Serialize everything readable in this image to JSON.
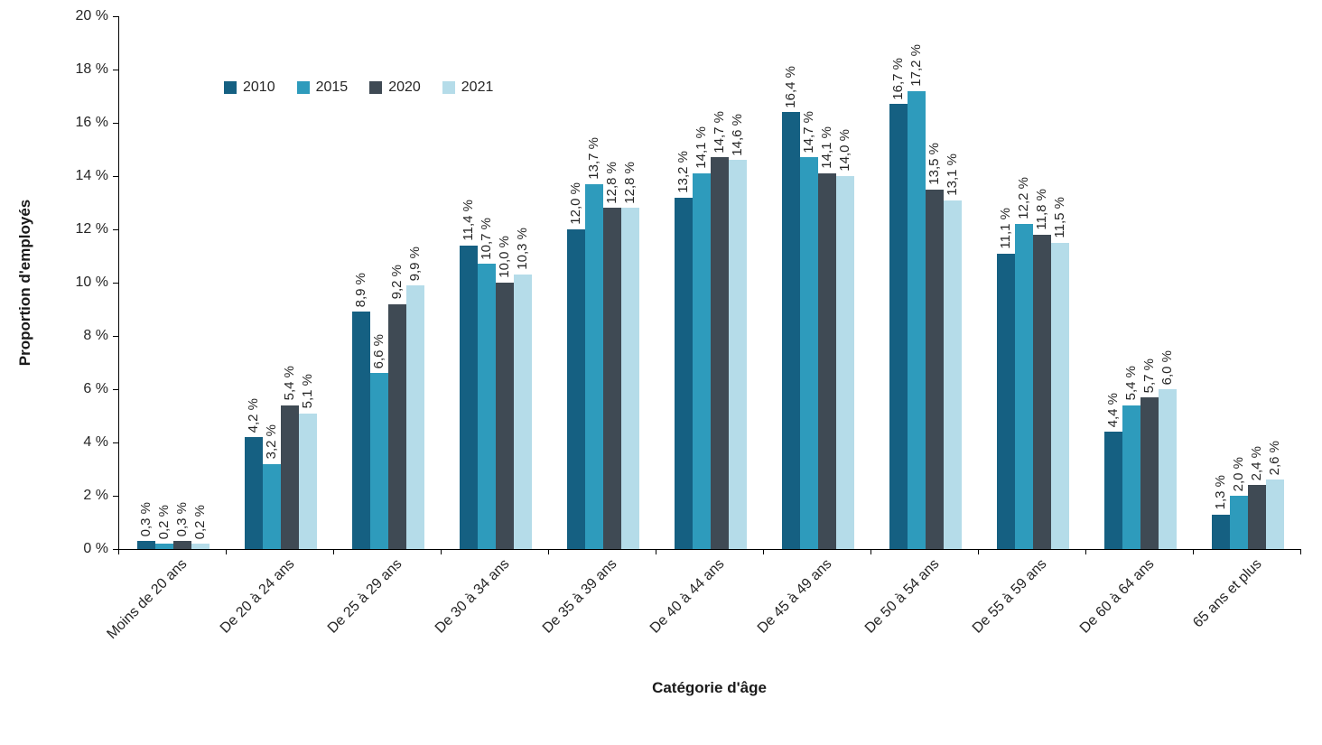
{
  "chart_data": {
    "type": "bar",
    "title": "",
    "xlabel": "Catégorie d'âge",
    "ylabel": "Proportion d'employés",
    "ylim": [
      0,
      20
    ],
    "ytick_step": 2,
    "yticks": [
      "0 %",
      "2 %",
      "4 %",
      "6 %",
      "8 %",
      "10 %",
      "12 %",
      "14 %",
      "16 %",
      "18 %",
      "20 %"
    ],
    "grid": false,
    "legend_position": "top-left-inside",
    "categories": [
      "Moins de 20 ans",
      "De 20 à 24 ans",
      "De 25 à 29 ans",
      "De 30 à 34 ans",
      "De 35 à 39 ans",
      "De 40 à 44 ans",
      "De 45 à 49 ans",
      "De 50 à 54 ans",
      "De 55 à 59 ans",
      "De 60 à 64 ans",
      "65 ans et plus"
    ],
    "series": [
      {
        "name": "2010",
        "color": "#156082",
        "values": [
          0.3,
          4.2,
          8.9,
          11.4,
          12.0,
          13.2,
          16.4,
          16.7,
          11.1,
          4.4,
          1.3
        ],
        "labels": [
          "0,3 %",
          "4,2 %",
          "8,9 %",
          "11,4 %",
          "12,0 %",
          "13,2 %",
          "16,4 %",
          "16,7 %",
          "11,1 %",
          "4,4 %",
          "1,3 %"
        ]
      },
      {
        "name": "2015",
        "color": "#2E9BBC",
        "values": [
          0.2,
          3.2,
          6.6,
          10.7,
          13.7,
          14.1,
          14.7,
          17.2,
          12.2,
          5.4,
          2.0
        ],
        "labels": [
          "0,2 %",
          "3,2 %",
          "6,6 %",
          "10,7 %",
          "13,7 %",
          "14,1 %",
          "14,7 %",
          "17,2 %",
          "12,2 %",
          "5,4 %",
          "2,0 %"
        ]
      },
      {
        "name": "2020",
        "color": "#3F4A54",
        "values": [
          0.3,
          5.4,
          9.2,
          10.0,
          12.8,
          14.7,
          14.1,
          13.5,
          11.8,
          5.7,
          2.4
        ],
        "labels": [
          "0,3 %",
          "5,4 %",
          "9,2 %",
          "10,0 %",
          "12,8 %",
          "14,7 %",
          "14,1 %",
          "13,5 %",
          "11,8 %",
          "5,7 %",
          "2,4 %"
        ]
      },
      {
        "name": "2021",
        "color": "#B5DCE9",
        "values": [
          0.2,
          5.1,
          9.9,
          10.3,
          12.8,
          14.6,
          14.0,
          13.1,
          11.5,
          6.0,
          2.6
        ],
        "labels": [
          "0,2 %",
          "5,1 %",
          "9,9 %",
          "10,3 %",
          "12,8 %",
          "14,6 %",
          "14,0 %",
          "13,1 %",
          "11,5 %",
          "6,0 %",
          "2,6 %"
        ]
      }
    ]
  }
}
